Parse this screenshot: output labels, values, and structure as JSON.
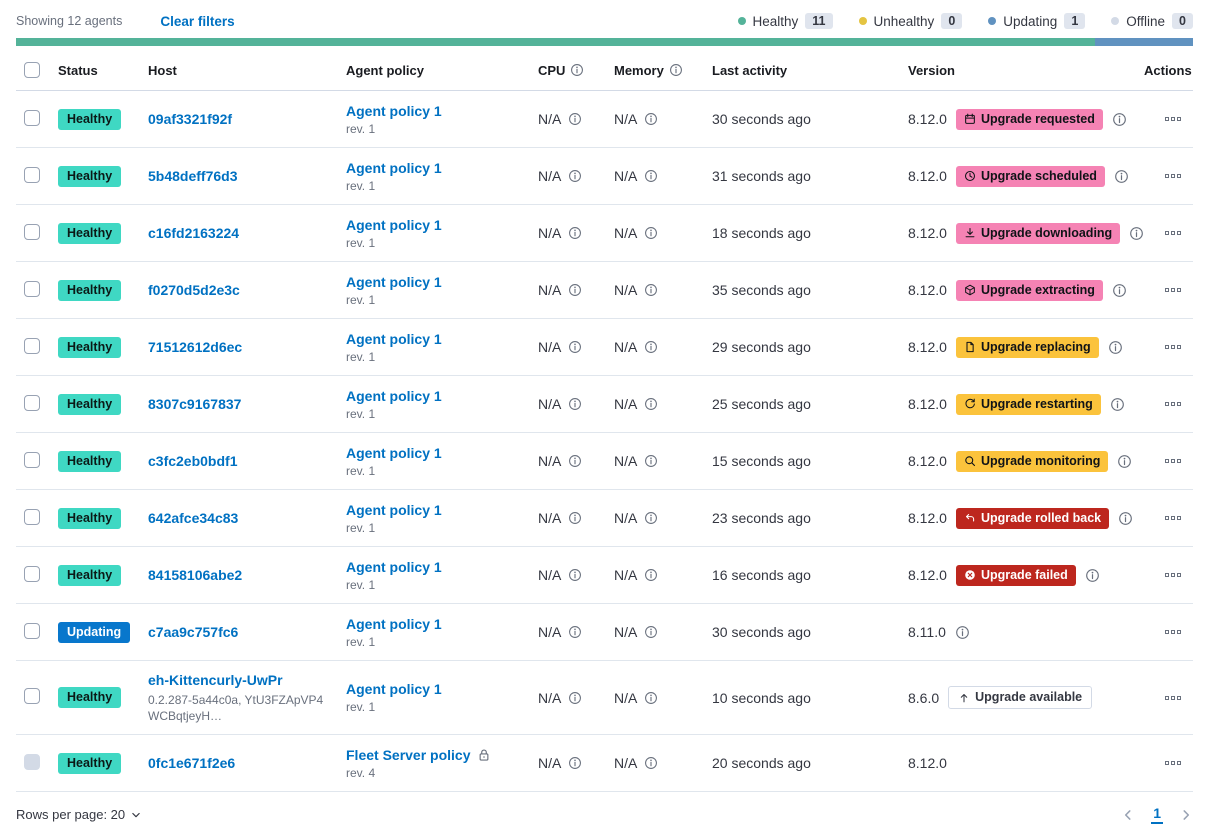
{
  "toolbar": {
    "showing": "Showing 12 agents",
    "clear_filters": "Clear filters",
    "legend": [
      {
        "label": "Healthy",
        "count": "11",
        "color": "#54B399"
      },
      {
        "label": "Unhealthy",
        "count": "0",
        "color": "#E4C441"
      },
      {
        "label": "Updating",
        "count": "1",
        "color": "#6092C0"
      },
      {
        "label": "Offline",
        "count": "0",
        "color": "#D3DAE6"
      }
    ]
  },
  "progress": {
    "segments": [
      {
        "status": "healthy",
        "color": "#54B399",
        "fraction": 0.9167
      },
      {
        "status": "updating",
        "color": "#6092C0",
        "fraction": 0.0833
      }
    ]
  },
  "colors": {
    "healthy_badge": "#3FD8C3",
    "updating_badge": "#0877CC",
    "upgrade_pink": "#F583B4",
    "upgrade_amber": "#FBC33C",
    "upgrade_red": "#BD271E",
    "link_blue": "#0071C2"
  },
  "table": {
    "headers": {
      "status": "Status",
      "host": "Host",
      "policy": "Agent policy",
      "cpu": "CPU",
      "memory": "Memory",
      "last_activity": "Last activity",
      "version": "Version",
      "actions": "Actions"
    }
  },
  "rows": [
    {
      "status": "Healthy",
      "host": "09af3321f92f",
      "policy": "Agent policy 1",
      "rev": "rev. 1",
      "cpu": "N/A",
      "memory": "N/A",
      "last_activity": "30 seconds ago",
      "version": "8.12.0",
      "upgrade_label": "Upgrade requested",
      "upgrade_icon": "calendar"
    },
    {
      "status": "Healthy",
      "host": "5b48deff76d3",
      "policy": "Agent policy 1",
      "rev": "rev. 1",
      "cpu": "N/A",
      "memory": "N/A",
      "last_activity": "31 seconds ago",
      "version": "8.12.0",
      "upgrade_label": "Upgrade scheduled",
      "upgrade_icon": "clock"
    },
    {
      "status": "Healthy",
      "host": "c16fd2163224",
      "policy": "Agent policy 1",
      "rev": "rev. 1",
      "cpu": "N/A",
      "memory": "N/A",
      "last_activity": "18 seconds ago",
      "version": "8.12.0",
      "upgrade_label": "Upgrade downloading",
      "upgrade_icon": "download"
    },
    {
      "status": "Healthy",
      "host": "f0270d5d2e3c",
      "policy": "Agent policy 1",
      "rev": "rev. 1",
      "cpu": "N/A",
      "memory": "N/A",
      "last_activity": "35 seconds ago",
      "version": "8.12.0",
      "upgrade_label": "Upgrade extracting",
      "upgrade_icon": "package"
    },
    {
      "status": "Healthy",
      "host": "71512612d6ec",
      "policy": "Agent policy 1",
      "rev": "rev. 1",
      "cpu": "N/A",
      "memory": "N/A",
      "last_activity": "29 seconds ago",
      "version": "8.12.0",
      "upgrade_label": "Upgrade replacing",
      "upgrade_icon": "document"
    },
    {
      "status": "Healthy",
      "host": "8307c9167837",
      "policy": "Agent policy 1",
      "rev": "rev. 1",
      "cpu": "N/A",
      "memory": "N/A",
      "last_activity": "25 seconds ago",
      "version": "8.12.0",
      "upgrade_label": "Upgrade restarting",
      "upgrade_icon": "refresh"
    },
    {
      "status": "Healthy",
      "host": "c3fc2eb0bdf1",
      "policy": "Agent policy 1",
      "rev": "rev. 1",
      "cpu": "N/A",
      "memory": "N/A",
      "last_activity": "15 seconds ago",
      "version": "8.12.0",
      "upgrade_label": "Upgrade monitoring",
      "upgrade_icon": "inspect"
    },
    {
      "status": "Healthy",
      "host": "642afce34c83",
      "policy": "Agent policy 1",
      "rev": "rev. 1",
      "cpu": "N/A",
      "memory": "N/A",
      "last_activity": "23 seconds ago",
      "version": "8.12.0",
      "upgrade_label": "Upgrade rolled back",
      "upgrade_icon": "return-arrow"
    },
    {
      "status": "Healthy",
      "host": "84158106abe2",
      "policy": "Agent policy 1",
      "rev": "rev. 1",
      "cpu": "N/A",
      "memory": "N/A",
      "last_activity": "16 seconds ago",
      "version": "8.12.0",
      "upgrade_label": "Upgrade failed",
      "upgrade_icon": "x-circle"
    },
    {
      "status": "Updating",
      "host": "c7aa9c757fc6",
      "policy": "Agent policy 1",
      "rev": "rev. 1",
      "cpu": "N/A",
      "memory": "N/A",
      "last_activity": "30 seconds ago",
      "version": "8.11.0"
    },
    {
      "status": "Healthy",
      "host": "eh-Kittencurly-UwPr",
      "host_sub": "0.2.287-5a44c0a, YtU3FZApVP4WCBqtjeyH…",
      "policy": "Agent policy 1",
      "rev": "rev. 1",
      "cpu": "N/A",
      "memory": "N/A",
      "last_activity": "10 seconds ago",
      "version": "8.6.0",
      "upgrade_label": "Upgrade available",
      "upgrade_icon": "up-arrow"
    },
    {
      "status": "Healthy",
      "host": "0fc1e671f2e6",
      "policy": "Fleet Server policy",
      "rev": "rev. 4",
      "cpu": "N/A",
      "memory": "N/A",
      "last_activity": "20 seconds ago",
      "version": "8.12.0"
    }
  ],
  "footer": {
    "rows_per_page": "Rows per page: 20",
    "page": "1"
  }
}
